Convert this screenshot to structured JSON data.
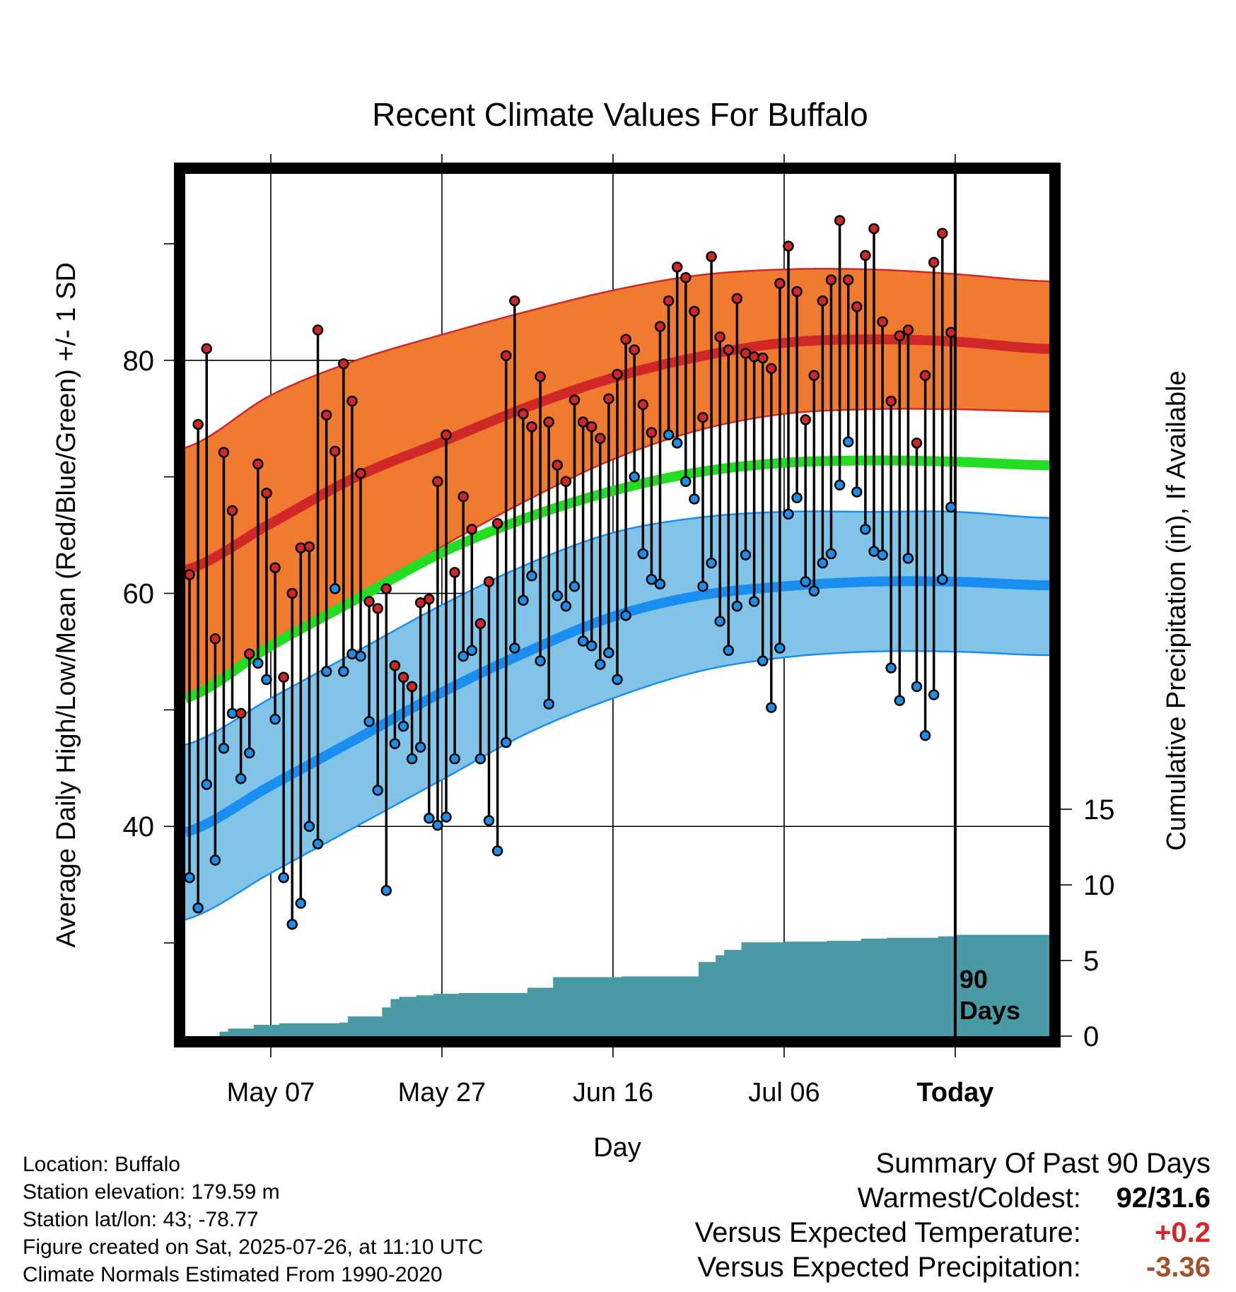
{
  "chart_data": {
    "type": "line",
    "title": "Recent Climate Values For Buffalo",
    "xlabel": "Day",
    "ylabel_left": "Average Daily High/Low/Mean (Red/Blue/Green) +/- 1 SD",
    "ylabel_right": "Cumulative Precipitation (in), If Available",
    "x_tick_labels": [
      "May 07",
      "May 27",
      "Jun 16",
      "Jul 06",
      "Today"
    ],
    "y_left_ticks": [
      40,
      60,
      80
    ],
    "y_right_ticks": [
      0,
      5,
      10,
      15
    ],
    "ylim_left": [
      22,
      96
    ],
    "ylim_right": [
      0,
      57
    ],
    "start_date": "2025-04-27",
    "days_shown": 101,
    "today_day_index": 90,
    "today_label": [
      "90",
      "Days"
    ],
    "grid": true,
    "colors": {
      "high_band": "#f07a30",
      "high_mean": "#d02828",
      "low_band": "#82c3e8",
      "low_mean": "#1a8ef0",
      "mean": "#22dd22",
      "precip": "#4a9aa6",
      "high_point": "#d02828",
      "low_point": "#1e8ee6"
    },
    "normals": {
      "days": [
        0,
        10,
        20,
        30,
        40,
        50,
        60,
        70,
        80,
        90,
        100
      ],
      "normal_high": [
        62,
        66,
        70,
        73,
        76,
        78.5,
        80.3,
        81.5,
        81.8,
        81.6,
        81
      ],
      "normal_high_upper": [
        72.5,
        77,
        80,
        82.2,
        84.2,
        86,
        87.3,
        87.8,
        87.8,
        87.4,
        86.8
      ],
      "normal_high_lower": [
        51,
        55.5,
        59.5,
        64,
        68,
        71.5,
        74,
        75.4,
        75.8,
        75.8,
        75.6
      ],
      "normal_mean": [
        51,
        55.5,
        59.5,
        63.5,
        66.5,
        68.8,
        70.4,
        71.2,
        71.4,
        71.3,
        71
      ],
      "normal_low": [
        39.5,
        43.5,
        47.5,
        51.5,
        55,
        58,
        59.8,
        60.6,
        61,
        61,
        60.7
      ],
      "normal_low_upper": [
        47,
        51,
        55,
        59,
        62.5,
        65.2,
        66.5,
        67,
        67,
        67,
        66.5
      ],
      "normal_low_lower": [
        32,
        36,
        40,
        44,
        48,
        51,
        53.3,
        54.5,
        55,
        55,
        54.7
      ]
    },
    "daily_high": [
      61.6,
      74.5,
      81,
      56.1,
      72.1,
      67.1,
      49.7,
      54.8,
      71.1,
      68.6,
      62.2,
      52.8,
      60,
      63.9,
      64,
      82.6,
      75.3,
      72.2,
      79.7,
      76.5,
      70.3,
      59.3,
      58.7,
      60.4,
      53.8,
      52.8,
      52,
      59.2,
      59.5,
      69.6,
      73.6,
      61.8,
      68.3,
      65.5,
      57.4,
      61,
      66,
      80.4,
      85.1,
      75.4,
      74.3,
      78.6,
      74.7,
      71,
      69.6,
      76.6,
      74.7,
      74.3,
      73.3,
      76.7,
      78.8,
      81.8,
      80.9,
      76.2,
      73.8,
      82.9,
      85.1,
      88,
      87.1,
      84.2,
      75.1,
      88.9,
      82,
      80.9,
      85.3,
      80.6,
      80.3,
      80.2,
      79.3,
      86.6,
      89.8,
      85.9,
      74.9,
      78.7,
      85.1,
      86.9,
      92,
      86.9,
      84.6,
      89,
      91.3,
      83.3,
      76.5,
      82.1,
      82.6,
      72.9,
      78.7,
      88.4,
      90.9,
      82.4
    ],
    "daily_low": [
      35.6,
      33,
      43.6,
      37.1,
      46.7,
      49.7,
      44.1,
      46.3,
      54,
      52.6,
      49.2,
      35.6,
      31.6,
      33.4,
      40,
      38.5,
      53.3,
      60.4,
      53.3,
      54.8,
      54.6,
      49,
      43.1,
      34.5,
      47.1,
      48.6,
      45.8,
      46.8,
      40.7,
      40.1,
      40.8,
      45.8,
      54.6,
      55.1,
      45.8,
      40.5,
      37.9,
      47.2,
      55.3,
      59.4,
      61.5,
      54.2,
      50.5,
      59.8,
      58.9,
      60.6,
      55.9,
      55.5,
      53.9,
      54.9,
      52.6,
      58.1,
      70,
      63.4,
      61.2,
      60.8,
      73.6,
      72.9,
      69.6,
      68.1,
      60.6,
      62.6,
      57.6,
      55.1,
      58.9,
      63.3,
      59.3,
      54.2,
      50.2,
      55.3,
      66.8,
      68.2,
      61,
      60.2,
      62.6,
      63.4,
      69.3,
      73,
      68.7,
      65.5,
      63.6,
      63.3,
      53.6,
      50.8,
      63,
      52,
      47.8,
      51.3,
      61.2,
      67.4
    ],
    "precip_days": [
      0,
      3,
      4,
      5,
      8,
      11,
      15,
      18,
      19,
      22,
      23,
      24,
      25,
      27,
      29,
      32,
      34,
      40,
      43,
      47,
      51,
      58,
      60,
      62,
      63,
      65,
      70,
      75,
      79,
      82,
      85,
      88,
      90,
      101
    ],
    "cumulative_precip": [
      0,
      0,
      0.3,
      0.5,
      0.75,
      0.85,
      0.85,
      0.9,
      1.3,
      1.3,
      1.9,
      2.45,
      2.6,
      2.7,
      2.8,
      2.85,
      2.85,
      3.2,
      3.9,
      3.9,
      3.95,
      3.95,
      4.9,
      5.35,
      5.7,
      6.2,
      6.25,
      6.3,
      6.45,
      6.5,
      6.5,
      6.6,
      6.7,
      6.7
    ]
  },
  "info": {
    "location": "Location: Buffalo",
    "elevation": "Station elevation: 179.59 m",
    "latlon": "Station lat/lon: 43; -78.77",
    "created": "Figure created on Sat, 2025-07-26, at 11:10 UTC",
    "normals": "Climate Normals Estimated From 1990-2020"
  },
  "summary": {
    "title": "Summary Of Past 90 Days",
    "warm_cold_label": "Warmest/Coldest:",
    "warm_cold_value": "92/31.6",
    "temp_label": "Versus Expected Temperature:",
    "temp_value": "+0.2",
    "temp_color": "#d02828",
    "precip_label": "Versus Expected Precipitation:",
    "precip_value": "-3.36",
    "precip_color": "#a0522d"
  }
}
